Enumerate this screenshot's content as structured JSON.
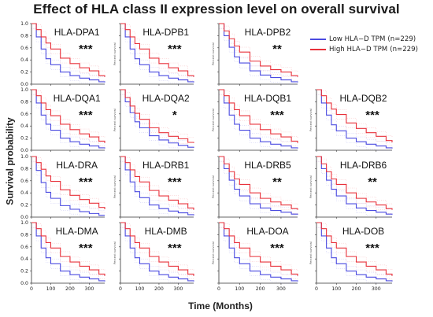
{
  "title": "Effect of HLA class II expression level on overall survival",
  "ylabel": "Survival probability",
  "xlabel": "Time (Months)",
  "panel_ylabel": "Percent survival",
  "colors": {
    "low": "#4a4ae0",
    "high": "#e8303a"
  },
  "legend": [
    {
      "label": "Low HLA−D TPM",
      "n": "(n=229)",
      "color": "#4a4ae0"
    },
    {
      "label": "High HLA−D TPM",
      "n": "(n=229)",
      "color": "#e8303a"
    }
  ],
  "chart_data": {
    "type": "line",
    "grid": false,
    "legend_position": "top-right",
    "xlabel": "Time (Months)",
    "ylabel": "Survival probability",
    "xlim": [
      0,
      380
    ],
    "ylim": [
      0,
      1.0
    ],
    "x_ticks": [
      "0",
      "100",
      "200",
      "300"
    ],
    "y_ticks": [
      "0.0",
      "0.2",
      "0.4",
      "0.6",
      "0.8",
      "1.0"
    ],
    "x": [
      0,
      25,
      50,
      75,
      100,
      150,
      200,
      250,
      300,
      350,
      380
    ],
    "panels": [
      {
        "name": "HLA-DPA1",
        "stars": "***",
        "low": [
          1.0,
          0.78,
          0.58,
          0.42,
          0.32,
          0.2,
          0.14,
          0.1,
          0.07,
          0.04,
          0.03
        ],
        "high": [
          1.0,
          0.9,
          0.78,
          0.68,
          0.58,
          0.43,
          0.34,
          0.27,
          0.22,
          0.14,
          0.12
        ]
      },
      {
        "name": "HLA-DPB1",
        "stars": "***",
        "low": [
          1.0,
          0.78,
          0.58,
          0.42,
          0.32,
          0.2,
          0.14,
          0.1,
          0.07,
          0.04,
          0.03
        ],
        "high": [
          1.0,
          0.9,
          0.78,
          0.67,
          0.58,
          0.43,
          0.34,
          0.27,
          0.22,
          0.14,
          0.12
        ]
      },
      {
        "name": "HLA-DPB2",
        "stars": "**",
        "low": [
          1.0,
          0.8,
          0.61,
          0.45,
          0.35,
          0.22,
          0.15,
          0.11,
          0.07,
          0.04,
          0.03
        ],
        "high": [
          1.0,
          0.88,
          0.75,
          0.63,
          0.53,
          0.38,
          0.3,
          0.24,
          0.2,
          0.14,
          0.12
        ]
      },
      {
        "name": "HLA-DQA1",
        "stars": "***",
        "low": [
          1.0,
          0.78,
          0.58,
          0.43,
          0.33,
          0.2,
          0.14,
          0.1,
          0.07,
          0.04,
          0.03
        ],
        "high": [
          1.0,
          0.9,
          0.78,
          0.67,
          0.57,
          0.43,
          0.34,
          0.27,
          0.22,
          0.15,
          0.12
        ]
      },
      {
        "name": "HLA-DQA2",
        "stars": "*",
        "low": [
          1.0,
          0.8,
          0.62,
          0.47,
          0.37,
          0.24,
          0.17,
          0.12,
          0.08,
          0.05,
          0.04
        ],
        "high": [
          1.0,
          0.87,
          0.73,
          0.61,
          0.51,
          0.37,
          0.29,
          0.23,
          0.19,
          0.13,
          0.12
        ]
      },
      {
        "name": "HLA-DQB1",
        "stars": "***",
        "low": [
          1.0,
          0.78,
          0.58,
          0.43,
          0.33,
          0.2,
          0.14,
          0.1,
          0.07,
          0.04,
          0.03
        ],
        "high": [
          1.0,
          0.9,
          0.78,
          0.67,
          0.57,
          0.43,
          0.34,
          0.27,
          0.22,
          0.15,
          0.12
        ]
      },
      {
        "name": "HLA-DQB2",
        "stars": "***",
        "low": [
          1.0,
          0.78,
          0.58,
          0.42,
          0.32,
          0.2,
          0.14,
          0.1,
          0.07,
          0.04,
          0.03
        ],
        "high": [
          1.0,
          0.9,
          0.78,
          0.68,
          0.59,
          0.45,
          0.36,
          0.29,
          0.23,
          0.16,
          0.13
        ]
      },
      {
        "name": "HLA-DRA",
        "stars": "***",
        "low": [
          1.0,
          0.77,
          0.57,
          0.41,
          0.31,
          0.19,
          0.13,
          0.09,
          0.06,
          0.03,
          0.03
        ],
        "high": [
          1.0,
          0.9,
          0.79,
          0.68,
          0.59,
          0.45,
          0.36,
          0.29,
          0.23,
          0.16,
          0.13
        ]
      },
      {
        "name": "HLA-DRB1",
        "stars": "***",
        "low": [
          1.0,
          0.78,
          0.58,
          0.42,
          0.32,
          0.2,
          0.14,
          0.1,
          0.07,
          0.04,
          0.03
        ],
        "high": [
          1.0,
          0.9,
          0.78,
          0.67,
          0.58,
          0.44,
          0.35,
          0.28,
          0.22,
          0.15,
          0.12
        ]
      },
      {
        "name": "HLA-DRB5",
        "stars": "**",
        "low": [
          1.0,
          0.8,
          0.61,
          0.46,
          0.35,
          0.22,
          0.15,
          0.11,
          0.08,
          0.05,
          0.04
        ],
        "high": [
          1.0,
          0.88,
          0.75,
          0.63,
          0.54,
          0.4,
          0.31,
          0.25,
          0.2,
          0.14,
          0.12
        ]
      },
      {
        "name": "HLA-DRB6",
        "stars": "**",
        "low": [
          1.0,
          0.8,
          0.61,
          0.46,
          0.35,
          0.22,
          0.15,
          0.11,
          0.08,
          0.05,
          0.04
        ],
        "high": [
          1.0,
          0.88,
          0.75,
          0.63,
          0.54,
          0.4,
          0.31,
          0.25,
          0.2,
          0.14,
          0.12
        ]
      },
      {
        "name": "HLA-DMA",
        "stars": "***",
        "low": [
          1.0,
          0.78,
          0.58,
          0.42,
          0.32,
          0.2,
          0.14,
          0.1,
          0.07,
          0.04,
          0.03
        ],
        "high": [
          1.0,
          0.9,
          0.78,
          0.67,
          0.58,
          0.44,
          0.35,
          0.28,
          0.22,
          0.15,
          0.12
        ]
      },
      {
        "name": "HLA-DMB",
        "stars": "***",
        "low": [
          1.0,
          0.78,
          0.58,
          0.42,
          0.32,
          0.2,
          0.14,
          0.1,
          0.07,
          0.04,
          0.03
        ],
        "high": [
          1.0,
          0.9,
          0.78,
          0.67,
          0.58,
          0.44,
          0.35,
          0.28,
          0.22,
          0.15,
          0.12
        ]
      },
      {
        "name": "HLA-DOA",
        "stars": "***",
        "low": [
          1.0,
          0.78,
          0.58,
          0.42,
          0.32,
          0.2,
          0.14,
          0.1,
          0.07,
          0.04,
          0.03
        ],
        "high": [
          1.0,
          0.9,
          0.78,
          0.67,
          0.58,
          0.44,
          0.35,
          0.28,
          0.22,
          0.15,
          0.12
        ]
      },
      {
        "name": "HLA-DOB",
        "stars": "***",
        "low": [
          1.0,
          0.78,
          0.58,
          0.42,
          0.32,
          0.2,
          0.14,
          0.1,
          0.07,
          0.04,
          0.03
        ],
        "high": [
          1.0,
          0.9,
          0.78,
          0.67,
          0.58,
          0.44,
          0.35,
          0.28,
          0.22,
          0.15,
          0.12
        ]
      }
    ]
  }
}
